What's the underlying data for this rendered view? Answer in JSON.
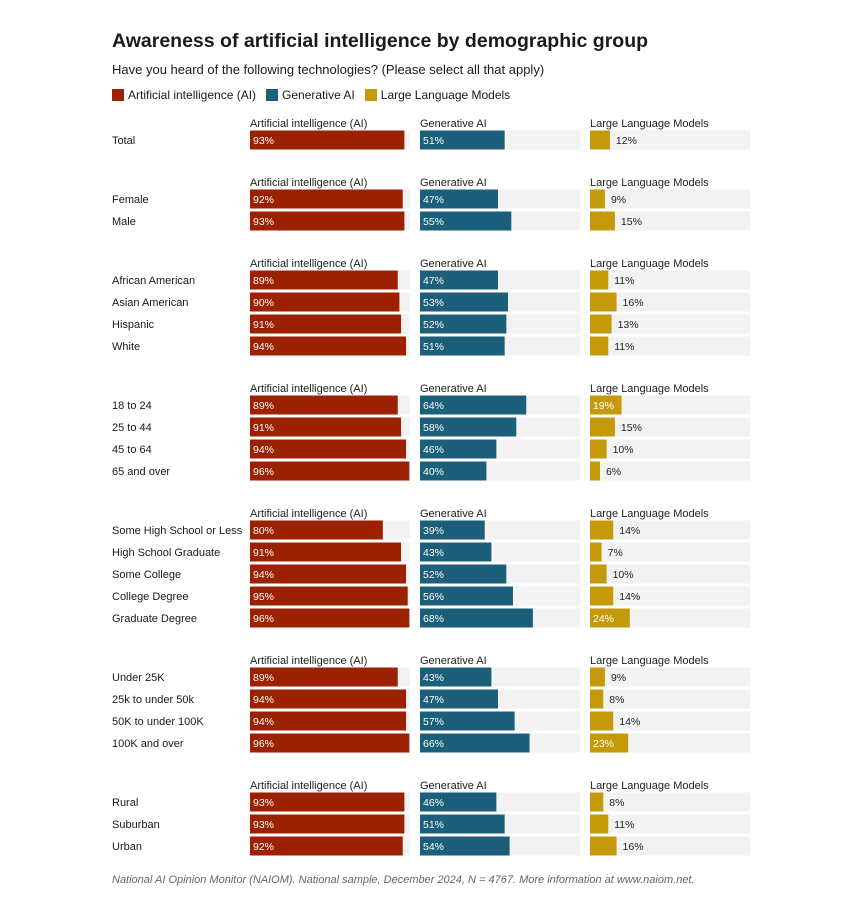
{
  "title": "Awareness of artificial intelligence by demographic group",
  "subtitle": "Have you heard of the following technologies? (Please select all that apply)",
  "note": "National AI Opinion Monitor (NAIOM). National sample, December 2024, N = 4767. More information at www.naiom.net.",
  "colors": {
    "ai": "#9b2100",
    "genai": "#1b5f7b",
    "llm": "#c59a0a",
    "track": "#f2f2f2"
  },
  "chart_data": {
    "type": "bar",
    "orientation": "horizontal",
    "legend_position": "top-left",
    "xlim": [
      0,
      100
    ],
    "grid": false,
    "series": [
      {
        "key": "ai",
        "name": "Artificial intelligence (AI)"
      },
      {
        "key": "genai",
        "name": "Generative AI"
      },
      {
        "key": "llm",
        "name": "Large Language Models"
      }
    ],
    "groups": [
      {
        "rows": [
          {
            "label": "Total",
            "values": [
              93,
              51,
              12
            ]
          }
        ]
      },
      {
        "rows": [
          {
            "label": "Female",
            "values": [
              92,
              47,
              9
            ]
          },
          {
            "label": "Male",
            "values": [
              93,
              55,
              15
            ]
          }
        ]
      },
      {
        "rows": [
          {
            "label": "African American",
            "values": [
              89,
              47,
              11
            ]
          },
          {
            "label": "Asian American",
            "values": [
              90,
              53,
              16
            ]
          },
          {
            "label": "Hispanic",
            "values": [
              91,
              52,
              13
            ]
          },
          {
            "label": "White",
            "values": [
              94,
              51,
              11
            ]
          }
        ]
      },
      {
        "rows": [
          {
            "label": "18 to 24",
            "values": [
              89,
              64,
              19
            ]
          },
          {
            "label": "25 to 44",
            "values": [
              91,
              58,
              15
            ]
          },
          {
            "label": "45 to 64",
            "values": [
              94,
              46,
              10
            ]
          },
          {
            "label": "65 and over",
            "values": [
              96,
              40,
              6
            ]
          }
        ]
      },
      {
        "rows": [
          {
            "label": "Some High School or Less",
            "values": [
              80,
              39,
              14
            ]
          },
          {
            "label": "High School Graduate",
            "values": [
              91,
              43,
              7
            ]
          },
          {
            "label": "Some College",
            "values": [
              94,
              52,
              10
            ]
          },
          {
            "label": "College Degree",
            "values": [
              95,
              56,
              14
            ]
          },
          {
            "label": "Graduate Degree",
            "values": [
              96,
              68,
              24
            ]
          }
        ]
      },
      {
        "rows": [
          {
            "label": "Under 25K",
            "values": [
              89,
              43,
              9
            ]
          },
          {
            "label": "25k to under 50k",
            "values": [
              94,
              47,
              8
            ]
          },
          {
            "label": "50K to under 100K",
            "values": [
              94,
              57,
              14
            ]
          },
          {
            "label": "100K and over",
            "values": [
              96,
              66,
              23
            ]
          }
        ]
      },
      {
        "rows": [
          {
            "label": "Rural",
            "values": [
              93,
              46,
              8
            ]
          },
          {
            "label": "Suburban",
            "values": [
              93,
              51,
              11
            ]
          },
          {
            "label": "Urban",
            "values": [
              92,
              54,
              16
            ]
          }
        ]
      }
    ]
  }
}
